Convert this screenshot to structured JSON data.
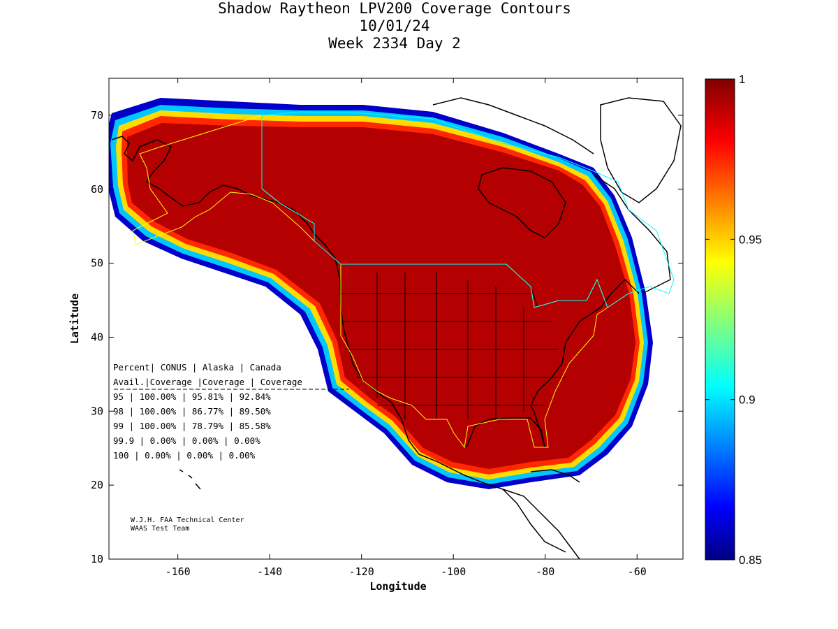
{
  "title": {
    "line1": "Shadow Raytheon LPV200 Coverage Contours",
    "line2": "10/01/24",
    "line3": "Week 2334 Day 2"
  },
  "axes": {
    "xlabel": "Longitude",
    "ylabel": "Latitude",
    "xticks": [
      "-160",
      "-140",
      "-120",
      "-100",
      "-80",
      "-60"
    ],
    "yticks": [
      "10",
      "20",
      "30",
      "40",
      "50",
      "60",
      "70"
    ],
    "xlim": [
      -175,
      -50
    ],
    "ylim": [
      10,
      75
    ]
  },
  "colorbar": {
    "ticks": [
      "1",
      "0.95",
      "0.9",
      "0.85"
    ],
    "range": [
      0.85,
      1
    ],
    "colormap": "jet"
  },
  "coverage_table": {
    "header1": "Percent| CONUS   | Alaska  | Canada",
    "header2": " Avail.|Coverage |Coverage | Coverage",
    "rows": [
      "  95   | 100.00%  | 95.81% | 92.84%",
      "  98   | 100.00%  | 86.77% | 89.50%",
      "  99   | 100.00%  | 78.79% | 85.58%",
      "99.9   | 0.00%  | 0.00% | 0.00%",
      " 100   | 0.00%  | 0.00% | 0.00%"
    ]
  },
  "credits": {
    "line1": "W.J.H. FAA Technical Center",
    "line2": "WAAS Test Team"
  },
  "colors": {
    "coverage_full": "#b40000",
    "service_boundary_yellow": "#ffff00",
    "service_boundary_cyan": "#00ffff"
  },
  "chart_data": {
    "type": "heatmap",
    "title": "Shadow Raytheon LPV200 Coverage Contours",
    "xlabel": "Longitude",
    "ylabel": "Latitude",
    "xlim": [
      -175,
      -50
    ],
    "ylim": [
      10,
      75
    ],
    "value_range": [
      0.85,
      1
    ],
    "coverage": [
      {
        "percent_avail": "95",
        "conus": "100.00%",
        "alaska": "95.81%",
        "canada": "92.84%"
      },
      {
        "percent_avail": "98",
        "conus": "100.00%",
        "alaska": "86.77%",
        "canada": "89.50%"
      },
      {
        "percent_avail": "99",
        "conus": "100.00%",
        "alaska": "78.79%",
        "canada": "85.58%"
      },
      {
        "percent_avail": "99.9",
        "conus": "0.00%",
        "alaska": "0.00%",
        "canada": "0.00%"
      },
      {
        "percent_avail": "100",
        "conus": "0.00%",
        "alaska": "0.00%",
        "canada": "0.00%"
      }
    ]
  }
}
